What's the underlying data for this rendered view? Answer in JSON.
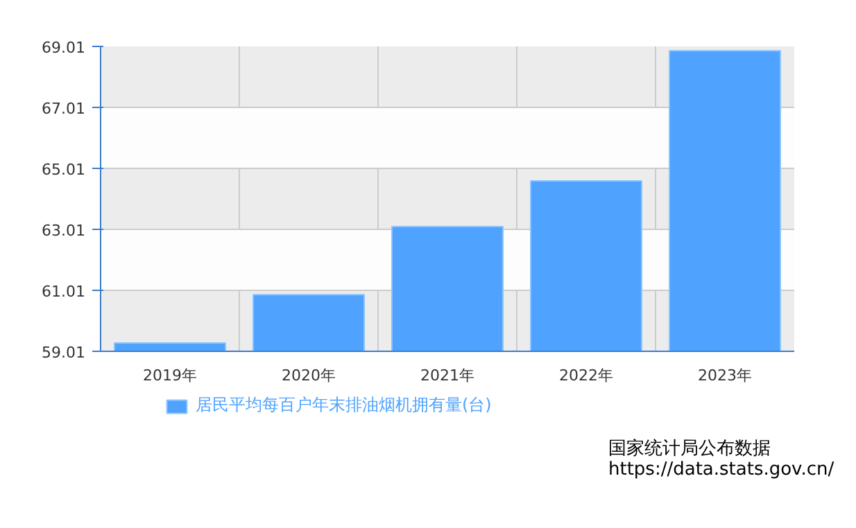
{
  "chart_data": {
    "type": "bar",
    "categories": [
      "2019年",
      "2020年",
      "2021年",
      "2022年",
      "2023年"
    ],
    "series": [
      {
        "name": "居民平均每百户年末排油烟机拥有量(台)",
        "color": "#4fa3ff",
        "values": [
          59.28,
          60.87,
          63.1,
          64.6,
          68.87
        ]
      }
    ],
    "ylim": [
      59.01,
      69.01
    ],
    "yticks": [
      59.01,
      61.01,
      63.01,
      65.01,
      67.01,
      69.01
    ],
    "grid": true,
    "legend": "bottom",
    "annotations": [
      "国家统计局公布数据",
      "https://data.stats.gov.cn/"
    ]
  }
}
